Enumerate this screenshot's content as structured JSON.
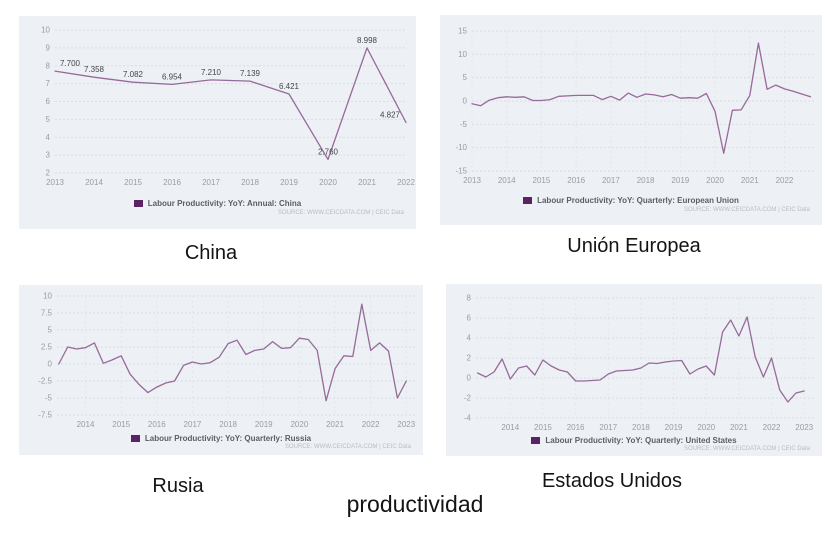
{
  "page": {
    "caption": "productividad"
  },
  "colors": {
    "line": "#966a9a",
    "legend_swatch": "#5a2364",
    "panel_bg": "#edf0f4",
    "h_grid": "#d9dde3",
    "v_grid": "#e3e6eb",
    "tick_text": "#989ea7",
    "point_label_text": "#43474c",
    "legend_text": "#595f66",
    "source_text": "#b9bec6"
  },
  "chart_data": [
    {
      "type": "line",
      "caption": "China",
      "legend": "Labour Productivity: YoY: Annual: China",
      "source": "SOURCE: WWW.CEICDATA.COM | CEIC Data",
      "x": [
        2013,
        2014,
        2015,
        2016,
        2017,
        2018,
        2019,
        2020,
        2021,
        2022
      ],
      "values": [
        7.7,
        7.358,
        7.082,
        6.954,
        7.21,
        7.139,
        6.421,
        2.76,
        8.998,
        4.827
      ],
      "point_labels": [
        "7.700",
        "7.358",
        "7.082",
        "6.954",
        "7.210",
        "7.139",
        "6.421",
        "2.760",
        "8.998",
        "4.827"
      ],
      "ylim": [
        2,
        10
      ],
      "yticks": [
        2,
        3,
        4,
        5,
        6,
        7,
        8,
        9,
        10
      ],
      "xticks": [
        2013,
        2014,
        2015,
        2016,
        2017,
        2018,
        2019,
        2020,
        2021,
        2022
      ],
      "xlim": [
        2013,
        2022
      ],
      "grid": {
        "h": true,
        "v": false
      },
      "legend_position": "bottom"
    },
    {
      "type": "line",
      "caption": "Unión Europea",
      "legend": "Labour Productivity: YoY: Quarterly: European Union",
      "source": "SOURCE: WWW.CEICDATA.COM | CEIC Data",
      "x_start": 2013.0,
      "x_step": 0.25,
      "values": [
        -0.6,
        -1.0,
        0.2,
        0.7,
        0.9,
        0.8,
        0.9,
        0.1,
        0.1,
        0.3,
        1.0,
        1.1,
        1.2,
        1.2,
        1.2,
        0.3,
        1.0,
        0.2,
        1.7,
        0.8,
        1.5,
        1.3,
        0.9,
        1.4,
        0.6,
        0.7,
        0.6,
        1.6,
        -2.2,
        -11.2,
        -2.0,
        -1.9,
        1.2,
        12.4,
        2.5,
        3.4,
        2.6,
        2.1,
        1.5,
        0.9
      ],
      "ylim": [
        -15,
        15
      ],
      "yticks": [
        -15,
        -10,
        -5,
        0,
        5,
        10,
        15
      ],
      "xticks": [
        2013,
        2014,
        2015,
        2016,
        2017,
        2018,
        2019,
        2020,
        2021,
        2022
      ],
      "xlim": [
        2013.0,
        2022.85
      ],
      "grid": {
        "h": true,
        "v": true
      },
      "legend_position": "bottom"
    },
    {
      "type": "line",
      "caption": "Rusia",
      "legend": "Labour Productivity: YoY: Quarterly: Russia",
      "source": "SOURCE: WWW.CEICDATA.COM | CEIC Data",
      "x_start": 2013.25,
      "x_step": 0.25,
      "values": [
        0.0,
        2.5,
        2.2,
        2.4,
        3.1,
        0.1,
        0.6,
        1.2,
        -1.5,
        -3.0,
        -4.2,
        -3.4,
        -2.8,
        -2.5,
        -0.2,
        0.3,
        0.0,
        0.2,
        1.0,
        3.0,
        3.5,
        1.4,
        2.0,
        2.2,
        3.3,
        2.3,
        2.4,
        3.8,
        3.6,
        2.0,
        -5.4,
        -0.7,
        1.2,
        1.1,
        8.8,
        2.0,
        3.1,
        1.9,
        -5.0,
        -2.5
      ],
      "ylim": [
        -7.5,
        10
      ],
      "yticks": [
        -7.5,
        -5,
        -2.5,
        0,
        2.5,
        5,
        7.5,
        10
      ],
      "xticks": [
        2014,
        2015,
        2016,
        2017,
        2018,
        2019,
        2020,
        2021,
        2022,
        2023
      ],
      "xlim": [
        2013.2,
        2023.3
      ],
      "grid": {
        "h": true,
        "v": true
      },
      "legend_position": "bottom"
    },
    {
      "type": "line",
      "caption": "Estados Unidos",
      "legend": "Labour Productivity: YoY: Quarterly: United States",
      "source": "SOURCE: WWW.CEICDATA.COM | CEIC Data",
      "x_start": 2013.0,
      "x_step": 0.25,
      "values": [
        0.5,
        0.1,
        0.6,
        1.9,
        -0.1,
        1.0,
        1.2,
        0.3,
        1.8,
        1.2,
        0.8,
        0.6,
        -0.3,
        -0.3,
        -0.25,
        -0.2,
        0.4,
        0.7,
        0.75,
        0.8,
        1.0,
        1.5,
        1.45,
        1.6,
        1.7,
        1.75,
        0.4,
        0.9,
        1.2,
        0.3,
        4.6,
        5.8,
        4.2,
        6.1,
        2.1,
        0.1,
        2.0,
        -1.2,
        -2.4,
        -1.5,
        -1.3
      ],
      "ylim": [
        -4,
        8
      ],
      "yticks": [
        -4,
        -2,
        0,
        2,
        4,
        6,
        8
      ],
      "xticks": [
        2014,
        2015,
        2016,
        2017,
        2018,
        2019,
        2020,
        2021,
        2022,
        2023
      ],
      "xlim": [
        2012.95,
        2023.3
      ],
      "grid": {
        "h": true,
        "v": true
      },
      "legend_position": "bottom"
    }
  ]
}
